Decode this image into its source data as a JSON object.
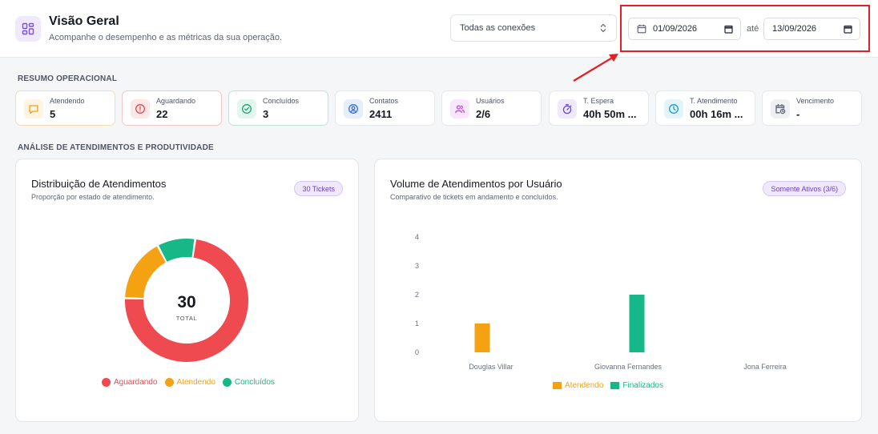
{
  "header": {
    "title": "Visão Geral",
    "subtitle": "Acompanhe o desempenho e as métricas da sua operação.",
    "icon": "dashboard-grid-icon"
  },
  "filters": {
    "connection_select": "Todas as conexões",
    "date_from": "01/09/2026",
    "date_separator": "até",
    "date_to": "13/09/2026"
  },
  "summary": {
    "label": "RESUMO OPERACIONAL",
    "cards": [
      {
        "label": "Atendendo",
        "value": "5",
        "icon": "message-icon",
        "color": "#f0a01f",
        "bg": "#fff4e1",
        "border": "#f6dcb0"
      },
      {
        "label": "Aguardando",
        "value": "22",
        "icon": "alert-circle-icon",
        "color": "#e2474b",
        "bg": "#fde8e8",
        "border": "#f3c5c7"
      },
      {
        "label": "Concluídos",
        "value": "3",
        "icon": "check-circle-icon",
        "color": "#1aa672",
        "bg": "#e3f6ee",
        "border": "#bfe5d6"
      },
      {
        "label": "Contatos",
        "value": "2411",
        "icon": "contact-icon",
        "color": "#3d6fd8",
        "bg": "#e6eefc",
        "border": "#e6e8ec"
      },
      {
        "label": "Usuários",
        "value": "2/6",
        "icon": "users-icon",
        "color": "#c04ad6",
        "bg": "#f8e8fb",
        "border": "#e6e8ec"
      },
      {
        "label": "T. Espera",
        "value": "40h 50m ...",
        "icon": "stopwatch-icon",
        "color": "#6a48d0",
        "bg": "#eee9fb",
        "border": "#e6e8ec"
      },
      {
        "label": "T. Atendimento",
        "value": "00h 16m ...",
        "icon": "clock-icon",
        "color": "#1e9bc8",
        "bg": "#e3f4fa",
        "border": "#e6e8ec"
      },
      {
        "label": "Vencimento",
        "value": "-",
        "icon": "calendar-clock-icon",
        "color": "#5e6472",
        "bg": "#eef0f3",
        "border": "#e6e8ec"
      }
    ]
  },
  "analysis": {
    "label": "ANÁLISE DE ATENDIMENTOS E PRODUTIVIDADE"
  },
  "distribution": {
    "title": "Distribuição de Atendimentos",
    "subtitle": "Proporção por estado de atendimento.",
    "badge": "30 Tickets",
    "total_value": "30",
    "total_label": "TOTAL"
  },
  "volume": {
    "title": "Volume de Atendimentos por Usuário",
    "subtitle": "Comparativo de tickets em andamento e concluídos.",
    "badge": "Somente Ativos (3/6)"
  },
  "chart_data": [
    {
      "type": "pie",
      "categories": [
        "Aguardando",
        "Atendendo",
        "Concluídos"
      ],
      "values": [
        22,
        5,
        3
      ],
      "colors": [
        "#ef4a4f",
        "#f5a212",
        "#16b887"
      ],
      "legend": "bottom",
      "donut": true
    },
    {
      "type": "bar",
      "categories": [
        "Douglas Villar",
        "Giovanna Fernandes",
        "Jona Ferreira"
      ],
      "series": [
        {
          "name": "Atendendo",
          "values": [
            1,
            0,
            0
          ],
          "color": "#f5a212"
        },
        {
          "name": "Finalizados",
          "values": [
            0,
            2,
            0
          ],
          "color": "#16b887"
        }
      ],
      "yticks": [
        "0",
        "1",
        "2",
        "3",
        "4"
      ],
      "ylim": [
        0,
        4
      ],
      "grid": false,
      "legend": "bottom"
    }
  ]
}
